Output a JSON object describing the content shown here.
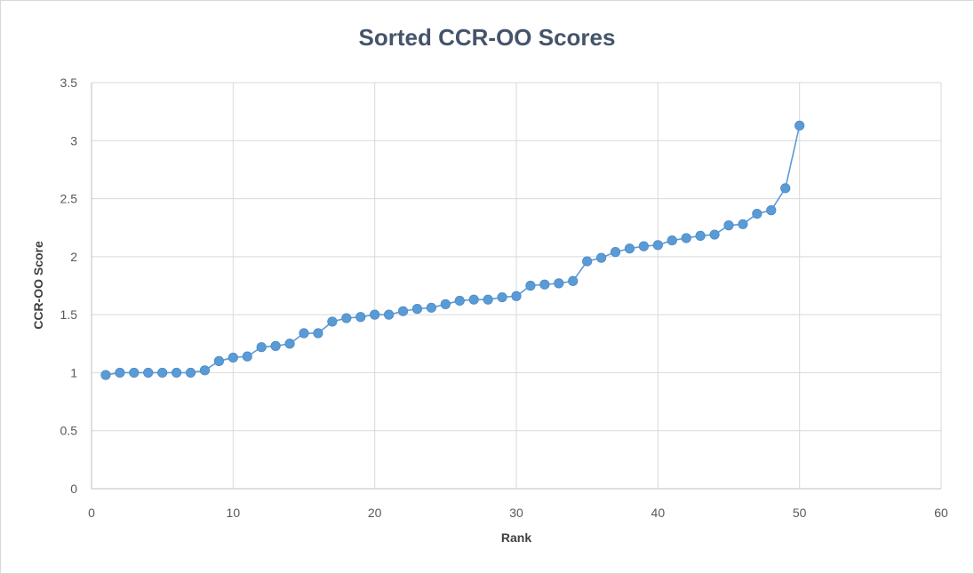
{
  "chart_data": {
    "type": "scatter",
    "title": "Sorted CCR-OO Scores",
    "xlabel": "Rank",
    "ylabel": "CCR-OO Score",
    "xlim": [
      0,
      60
    ],
    "ylim": [
      0,
      3.5
    ],
    "x_ticks": [
      0,
      10,
      20,
      30,
      40,
      50,
      60
    ],
    "y_ticks": [
      0,
      0.5,
      1,
      1.5,
      2,
      2.5,
      3,
      3.5
    ],
    "grid": true,
    "legend": "none",
    "line_color": "#5b9bd5",
    "series": [
      {
        "x": [
          1,
          2,
          3,
          4,
          5,
          6,
          7,
          8,
          9,
          10,
          11,
          12,
          13,
          14,
          15,
          16,
          17,
          18,
          19,
          20,
          21,
          22,
          23,
          24,
          25,
          26,
          27,
          28,
          29,
          30,
          31,
          32,
          33,
          34,
          35,
          36,
          37,
          38,
          39,
          40,
          41,
          42,
          43,
          44,
          45,
          46,
          47,
          48,
          49,
          50
        ],
        "values": [
          0.98,
          1.0,
          1.0,
          1.0,
          1.0,
          1.0,
          1.0,
          1.02,
          1.1,
          1.13,
          1.14,
          1.22,
          1.23,
          1.25,
          1.34,
          1.34,
          1.44,
          1.47,
          1.48,
          1.5,
          1.5,
          1.53,
          1.55,
          1.56,
          1.59,
          1.62,
          1.63,
          1.63,
          1.65,
          1.66,
          1.75,
          1.76,
          1.77,
          1.79,
          1.96,
          1.99,
          2.04,
          2.07,
          2.09,
          2.1,
          2.14,
          2.16,
          2.18,
          2.19,
          2.27,
          2.28,
          2.37,
          2.4,
          2.59,
          3.13
        ]
      }
    ]
  }
}
